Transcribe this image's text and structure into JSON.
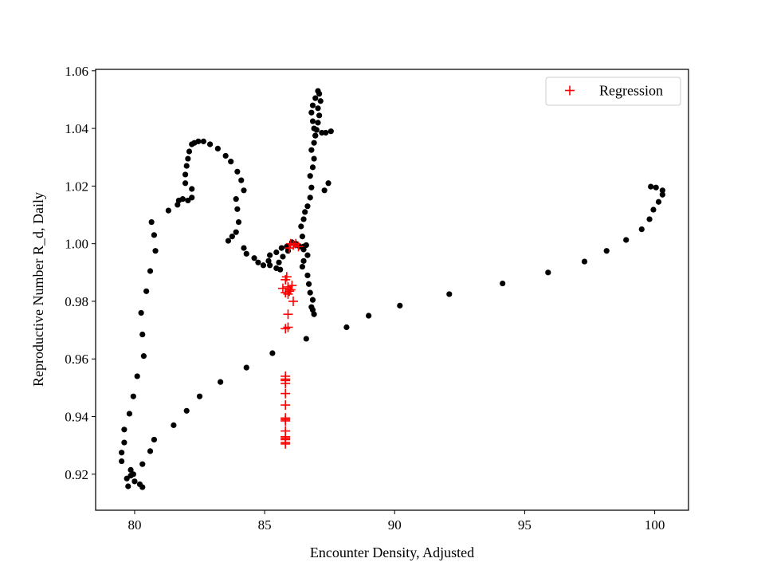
{
  "chart_data": {
    "type": "scatter",
    "title": "",
    "xlabel": "Encounter Density, Adjusted",
    "ylabel": "Reproductive Number R_d, Daily",
    "xlim": [
      78.5,
      101.3
    ],
    "ylim": [
      0.9075,
      1.0605
    ],
    "xticks": [
      80,
      85,
      90,
      95,
      100
    ],
    "yticks": [
      0.92,
      0.94,
      0.96,
      0.98,
      1.0,
      1.02,
      1.04,
      1.06
    ],
    "xtick_labels": [
      "80",
      "85",
      "90",
      "95",
      "100"
    ],
    "ytick_labels": [
      "0.92",
      "0.94",
      "0.96",
      "0.98",
      "1.00",
      "1.02",
      "1.04",
      "1.06"
    ],
    "grid": false,
    "legend_position": "top-right",
    "series": [
      {
        "marker": "dot",
        "color": "#000000",
        "points": [
          [
            86.6,
            0.967
          ],
          [
            85.3,
            0.962
          ],
          [
            84.3,
            0.957
          ],
          [
            83.3,
            0.952
          ],
          [
            82.5,
            0.947
          ],
          [
            82.0,
            0.942
          ],
          [
            81.5,
            0.937
          ],
          [
            80.75,
            0.932
          ],
          [
            80.6,
            0.928
          ],
          [
            80.3,
            0.9235
          ],
          [
            80.3,
            0.9155
          ],
          [
            80.2,
            0.9165
          ],
          [
            80.0,
            0.9175
          ],
          [
            79.85,
            0.9195
          ],
          [
            79.95,
            0.92
          ],
          [
            79.85,
            0.9215
          ],
          [
            79.7,
            0.9185
          ],
          [
            79.75,
            0.9158
          ],
          [
            79.5,
            0.9245
          ],
          [
            79.5,
            0.9275
          ],
          [
            79.6,
            0.931
          ],
          [
            79.6,
            0.9355
          ],
          [
            79.8,
            0.941
          ],
          [
            79.95,
            0.947
          ],
          [
            80.1,
            0.954
          ],
          [
            80.35,
            0.961
          ],
          [
            80.3,
            0.9685
          ],
          [
            80.25,
            0.976
          ],
          [
            80.45,
            0.9835
          ],
          [
            80.6,
            0.9905
          ],
          [
            80.8,
            0.9975
          ],
          [
            80.75,
            1.003
          ],
          [
            80.65,
            1.0075
          ],
          [
            81.3,
            1.0115
          ],
          [
            81.65,
            1.0135
          ],
          [
            81.7,
            1.015
          ],
          [
            81.85,
            1.0155
          ],
          [
            82.05,
            1.015
          ],
          [
            82.2,
            1.016
          ],
          [
            82.2,
            1.019
          ],
          [
            81.95,
            1.021
          ],
          [
            81.95,
            1.024
          ],
          [
            82.0,
            1.027
          ],
          [
            82.05,
            1.0295
          ],
          [
            82.1,
            1.032
          ],
          [
            82.2,
            1.0345
          ],
          [
            82.3,
            1.035
          ],
          [
            82.45,
            1.0355
          ],
          [
            82.65,
            1.0355
          ],
          [
            82.9,
            1.0345
          ],
          [
            83.2,
            1.033
          ],
          [
            83.5,
            1.0305
          ],
          [
            83.7,
            1.0285
          ],
          [
            83.95,
            1.025
          ],
          [
            84.1,
            1.022
          ],
          [
            84.2,
            1.0185
          ],
          [
            83.9,
            1.0155
          ],
          [
            83.95,
            1.012
          ],
          [
            84.0,
            1.0075
          ],
          [
            83.9,
            1.004
          ],
          [
            83.75,
            1.0025
          ],
          [
            83.6,
            1.001
          ],
          [
            84.2,
            0.9985
          ],
          [
            84.3,
            0.9965
          ],
          [
            84.6,
            0.995
          ],
          [
            84.75,
            0.9935
          ],
          [
            84.95,
            0.9925
          ],
          [
            85.2,
            0.9925
          ],
          [
            85.15,
            0.994
          ],
          [
            85.2,
            0.996
          ],
          [
            85.45,
            0.997
          ],
          [
            85.65,
            0.9985
          ],
          [
            85.85,
            0.999
          ],
          [
            86.05,
            1.0005
          ],
          [
            86.2,
            1.0
          ],
          [
            86.35,
            0.999
          ],
          [
            86.5,
            0.998
          ],
          [
            86.6,
            0.9995
          ],
          [
            86.65,
            0.996
          ],
          [
            86.5,
            0.994
          ],
          [
            86.45,
            0.992
          ],
          [
            86.65,
            0.989
          ],
          [
            86.7,
            0.986
          ],
          [
            86.75,
            0.983
          ],
          [
            86.85,
            0.9805
          ],
          [
            86.8,
            0.978
          ],
          [
            86.9,
            0.9755
          ],
          [
            86.85,
            0.977
          ],
          [
            86.5,
            0.999
          ],
          [
            86.45,
            1.0025
          ],
          [
            86.4,
            1.006
          ],
          [
            86.5,
            1.0085
          ],
          [
            86.55,
            1.011
          ],
          [
            86.65,
            1.013
          ],
          [
            86.75,
            1.016
          ],
          [
            86.8,
            1.0195
          ],
          [
            86.75,
            1.0235
          ],
          [
            86.85,
            1.0265
          ],
          [
            86.9,
            1.0295
          ],
          [
            86.8,
            1.0325
          ],
          [
            86.9,
            1.035
          ],
          [
            86.95,
            1.0375
          ],
          [
            87.0,
            1.0395
          ],
          [
            87.05,
            1.042
          ],
          [
            87.1,
            1.0445
          ],
          [
            87.05,
            1.047
          ],
          [
            87.15,
            1.0495
          ],
          [
            87.1,
            1.052
          ],
          [
            87.05,
            1.053
          ],
          [
            86.95,
            1.0505
          ],
          [
            86.85,
            1.048
          ],
          [
            86.8,
            1.0455
          ],
          [
            86.85,
            1.0425
          ],
          [
            86.9,
            1.04
          ],
          [
            86.95,
            1.0375
          ],
          [
            87.2,
            1.0385
          ],
          [
            87.35,
            1.0385
          ],
          [
            87.55,
            1.039
          ],
          [
            87.3,
            1.0185
          ],
          [
            87.45,
            1.021
          ],
          [
            86.2,
            0.9995
          ],
          [
            85.9,
            0.9975
          ],
          [
            85.7,
            0.9955
          ],
          [
            85.55,
            0.9935
          ],
          [
            85.45,
            0.9915
          ],
          [
            85.6,
            0.991
          ],
          [
            88.15,
            0.971
          ],
          [
            89.0,
            0.975
          ],
          [
            90.2,
            0.9785
          ],
          [
            92.1,
            0.9825
          ],
          [
            94.15,
            0.9862
          ],
          [
            95.9,
            0.99
          ],
          [
            97.3,
            0.9938
          ],
          [
            98.15,
            0.9975
          ],
          [
            98.9,
            1.0013
          ],
          [
            99.5,
            1.005
          ],
          [
            99.8,
            1.0085
          ],
          [
            99.95,
            1.0118
          ],
          [
            100.15,
            1.0145
          ],
          [
            100.3,
            1.017
          ],
          [
            100.3,
            1.0185
          ],
          [
            100.05,
            1.0195
          ],
          [
            99.85,
            1.0198
          ]
        ]
      },
      {
        "name": "Regression",
        "marker": "plus",
        "color": "#ff0000",
        "points": [
          [
            85.8,
            0.9305
          ],
          [
            85.8,
            0.931
          ],
          [
            85.8,
            0.932
          ],
          [
            85.8,
            0.9325
          ],
          [
            85.8,
            0.933
          ],
          [
            85.8,
            0.935
          ],
          [
            85.8,
            0.9385
          ],
          [
            85.8,
            0.939
          ],
          [
            85.8,
            0.9395
          ],
          [
            85.8,
            0.944
          ],
          [
            85.8,
            0.948
          ],
          [
            85.8,
            0.9515
          ],
          [
            85.8,
            0.9525
          ],
          [
            85.8,
            0.953
          ],
          [
            85.8,
            0.954
          ],
          [
            85.8,
            0.9705
          ],
          [
            85.9,
            0.971
          ],
          [
            85.9,
            0.9755
          ],
          [
            86.1,
            0.98
          ],
          [
            85.9,
            0.9825
          ],
          [
            85.95,
            0.9835
          ],
          [
            86.0,
            0.984
          ],
          [
            85.9,
            0.985
          ],
          [
            86.05,
            0.9855
          ],
          [
            85.8,
            0.983
          ],
          [
            85.7,
            0.9845
          ],
          [
            85.8,
            0.9875
          ],
          [
            85.85,
            0.9885
          ],
          [
            85.95,
            0.9985
          ],
          [
            86.0,
            1.0
          ],
          [
            86.1,
            0.9995
          ],
          [
            86.2,
            1.0
          ],
          [
            86.3,
            0.999
          ]
        ]
      }
    ]
  }
}
